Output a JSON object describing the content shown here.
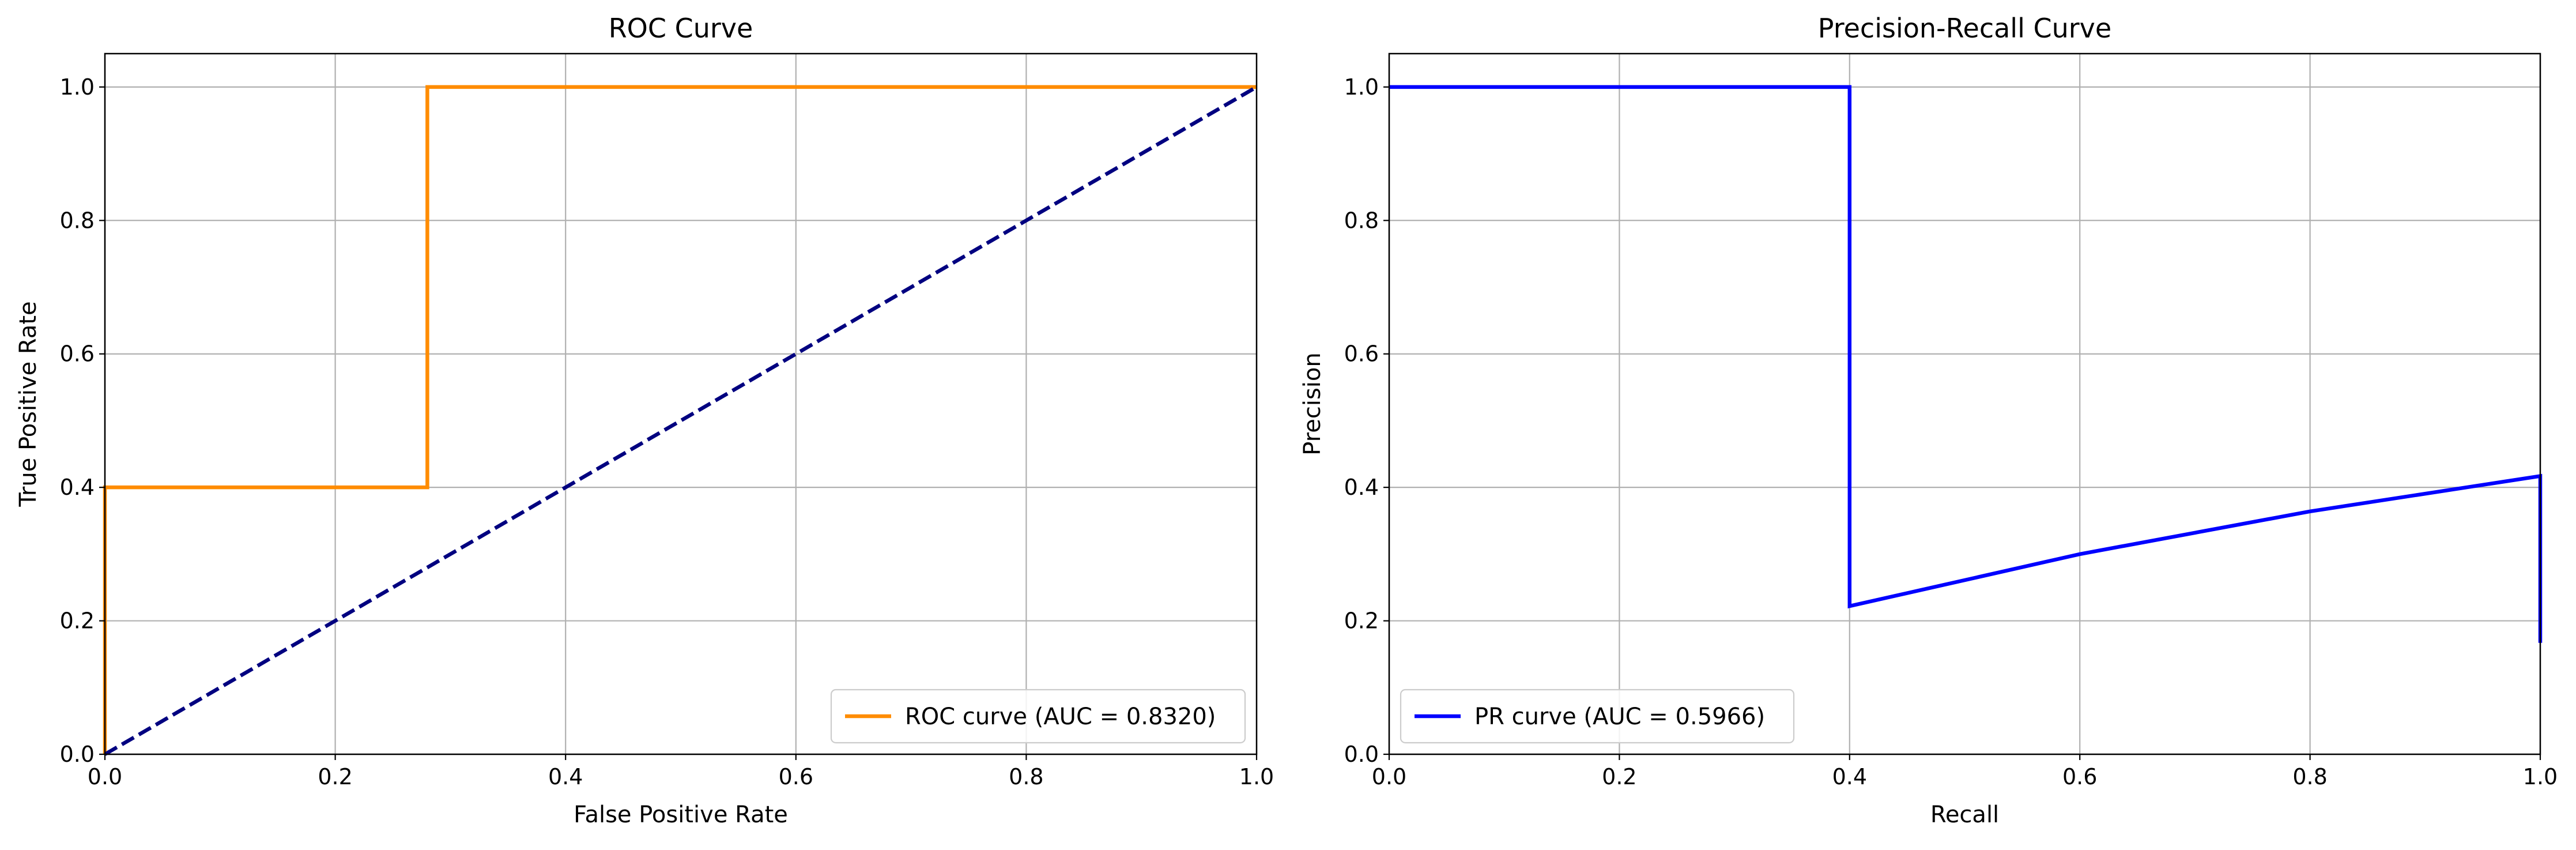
{
  "chart_data": [
    {
      "type": "line",
      "title": "ROC Curve",
      "xlabel": "False Positive Rate",
      "ylabel": "True Positive Rate",
      "xlim": [
        0.0,
        1.0
      ],
      "ylim": [
        0.0,
        1.05
      ],
      "grid": true,
      "legend_position": "lower right",
      "xticks": [
        "0.0",
        "0.2",
        "0.4",
        "0.6",
        "0.8",
        "1.0"
      ],
      "yticks": [
        "0.0",
        "0.2",
        "0.4",
        "0.6",
        "0.8",
        "1.0"
      ],
      "series": [
        {
          "name": "ROC curve (AUC = 0.8320)",
          "color": "#ff8c00",
          "style": "solid",
          "x": [
            0.0,
            0.0,
            0.28,
            0.28,
            1.0
          ],
          "y": [
            0.0,
            0.4,
            0.4,
            1.0,
            1.0
          ]
        },
        {
          "color": "#000080",
          "style": "dashed",
          "x": [
            0.0,
            1.0
          ],
          "y": [
            0.0,
            1.0
          ]
        }
      ]
    },
    {
      "type": "line",
      "title": "Precision-Recall Curve",
      "xlabel": "Recall",
      "ylabel": "Precision",
      "xlim": [
        0.0,
        1.0
      ],
      "ylim": [
        0.0,
        1.05
      ],
      "grid": true,
      "legend_position": "lower left",
      "xticks": [
        "0.0",
        "0.2",
        "0.4",
        "0.6",
        "0.8",
        "1.0"
      ],
      "yticks": [
        "0.0",
        "0.2",
        "0.4",
        "0.6",
        "0.8",
        "1.0"
      ],
      "series": [
        {
          "name": "PR curve (AUC = 0.5966)",
          "color": "#0000ff",
          "style": "solid",
          "x": [
            0.0,
            0.4,
            0.4,
            0.6,
            0.8,
            1.0,
            1.0
          ],
          "y": [
            1.0,
            1.0,
            0.222,
            0.3,
            0.364,
            0.417,
            0.167
          ]
        }
      ]
    }
  ]
}
